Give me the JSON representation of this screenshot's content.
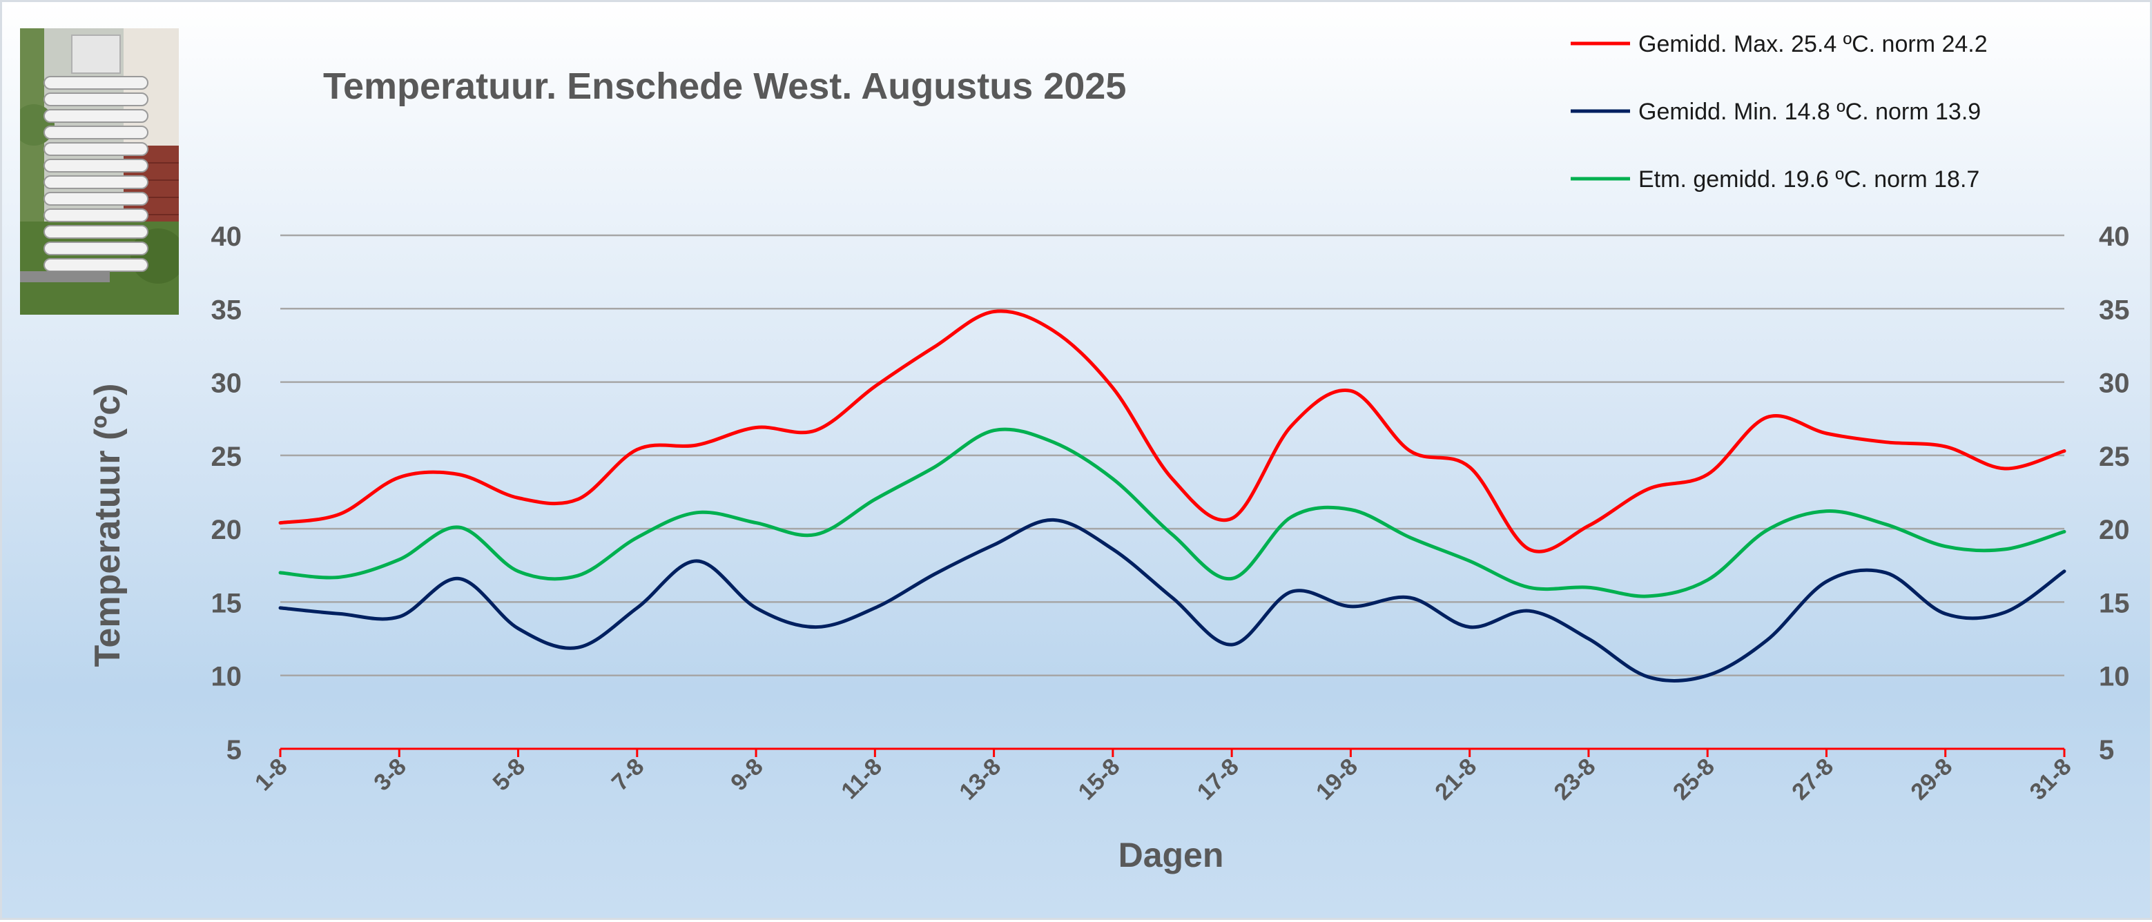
{
  "chart_data": {
    "type": "line",
    "title": "Temperatuur. Enschede West. Augustus 2025",
    "xlabel": "Dagen",
    "ylabel": "Temperatuur (ºc)",
    "ylim": [
      5,
      40
    ],
    "yticks": [
      5,
      10,
      15,
      20,
      25,
      30,
      35,
      40
    ],
    "grid": "horizontal",
    "legend_position": "top-right",
    "x": [
      "1-8",
      "2-8",
      "3-8",
      "4-8",
      "5-8",
      "6-8",
      "7-8",
      "8-8",
      "9-8",
      "10-8",
      "11-8",
      "12-8",
      "13-8",
      "14-8",
      "15-8",
      "16-8",
      "17-8",
      "18-8",
      "19-8",
      "20-8",
      "21-8",
      "22-8",
      "23-8",
      "24-8",
      "25-8",
      "26-8",
      "27-8",
      "28-8",
      "29-8",
      "30-8",
      "31-8"
    ],
    "x_tick_labels": [
      "1-8",
      "3-8",
      "5-8",
      "7-8",
      "9-8",
      "11-8",
      "13-8",
      "15-8",
      "17-8",
      "19-8",
      "21-8",
      "23-8",
      "25-8",
      "27-8",
      "29-8",
      "31-8"
    ],
    "series": [
      {
        "name": "Gemidd. Max. 25.4  ºC. norm 24.2",
        "color": "#ff0000",
        "values": [
          20.4,
          21.0,
          23.5,
          23.7,
          22.1,
          22.0,
          25.4,
          25.7,
          26.9,
          26.7,
          29.7,
          32.4,
          34.8,
          33.5,
          29.6,
          23.4,
          20.7,
          27.0,
          29.4,
          25.3,
          24.2,
          18.6,
          20.2,
          22.7,
          23.7,
          27.6,
          26.5,
          25.9,
          25.6,
          24.1,
          25.3
        ]
      },
      {
        "name": "Gemidd. Min. 14.8  ºC. norm 13.9",
        "color": "#002060",
        "values": [
          14.6,
          14.2,
          14.0,
          16.6,
          13.2,
          11.9,
          14.6,
          17.8,
          14.6,
          13.3,
          14.6,
          16.9,
          18.9,
          20.6,
          18.6,
          15.3,
          12.1,
          15.7,
          14.7,
          15.3,
          13.3,
          14.4,
          12.5,
          9.9,
          10.0,
          12.4,
          16.4,
          17.0,
          14.2,
          14.3,
          17.1
        ]
      },
      {
        "name": "Etm. gemidd. 19.6  ºC. norm 18.7",
        "color": "#00b050",
        "values": [
          17.0,
          16.7,
          17.9,
          20.1,
          17.1,
          16.8,
          19.4,
          21.1,
          20.4,
          19.6,
          22.0,
          24.2,
          26.7,
          25.9,
          23.4,
          19.6,
          16.6,
          20.8,
          21.3,
          19.4,
          17.8,
          16.0,
          16.0,
          15.4,
          16.5,
          19.9,
          21.2,
          20.3,
          18.8,
          18.6,
          19.8
        ]
      }
    ],
    "axis_color": "#ff0000",
    "gridline_color": "#a6a6a6"
  }
}
